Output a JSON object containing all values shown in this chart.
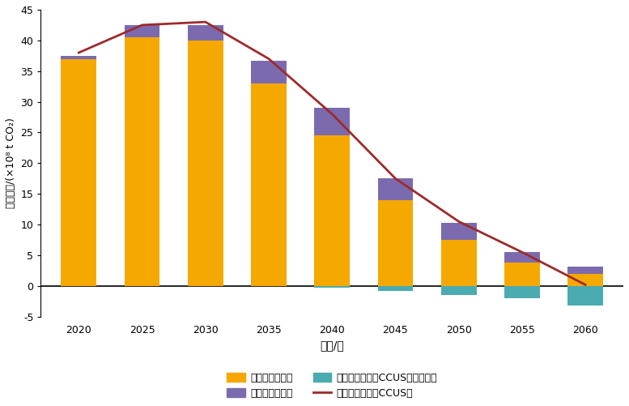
{
  "years": [
    2020,
    2025,
    2030,
    2035,
    2040,
    2045,
    2050,
    2055,
    2060
  ],
  "coal_emissions": [
    37.0,
    40.5,
    40.0,
    33.0,
    24.5,
    14.0,
    7.5,
    3.8,
    2.0
  ],
  "gas_emissions": [
    0.5,
    2.0,
    2.5,
    3.7,
    4.5,
    3.5,
    2.8,
    1.7,
    1.2
  ],
  "bio_emissions": [
    0.0,
    0.0,
    0.0,
    0.0,
    -0.3,
    -0.8,
    -1.5,
    -2.0,
    -3.2
  ],
  "total_line": [
    38.0,
    42.5,
    43.0,
    37.0,
    28.0,
    17.5,
    10.5,
    5.5,
    0.2
  ],
  "coal_color": "#F5A800",
  "gas_color": "#7B6BAE",
  "bio_color": "#4AABB0",
  "line_color": "#9E2A2B",
  "ylabel": "碳排放量/(×10⁸ t CO₂)",
  "xlabel": "时间/年",
  "ylim": [
    -5,
    45
  ],
  "yticks": [
    -5,
    0,
    5,
    10,
    15,
    20,
    25,
    30,
    35,
    40,
    45
  ],
  "legend_coal": "煤电净碳排放；",
  "legend_gas": "气电净碳排放；",
  "legend_bio": "生物质碳排放（CCUS减排量）；",
  "legend_line": "总碳排放（计入CCUS）",
  "background_color": "#ffffff",
  "bar_width": 2.8,
  "xlim_left": 2017.0,
  "xlim_right": 2063.0
}
